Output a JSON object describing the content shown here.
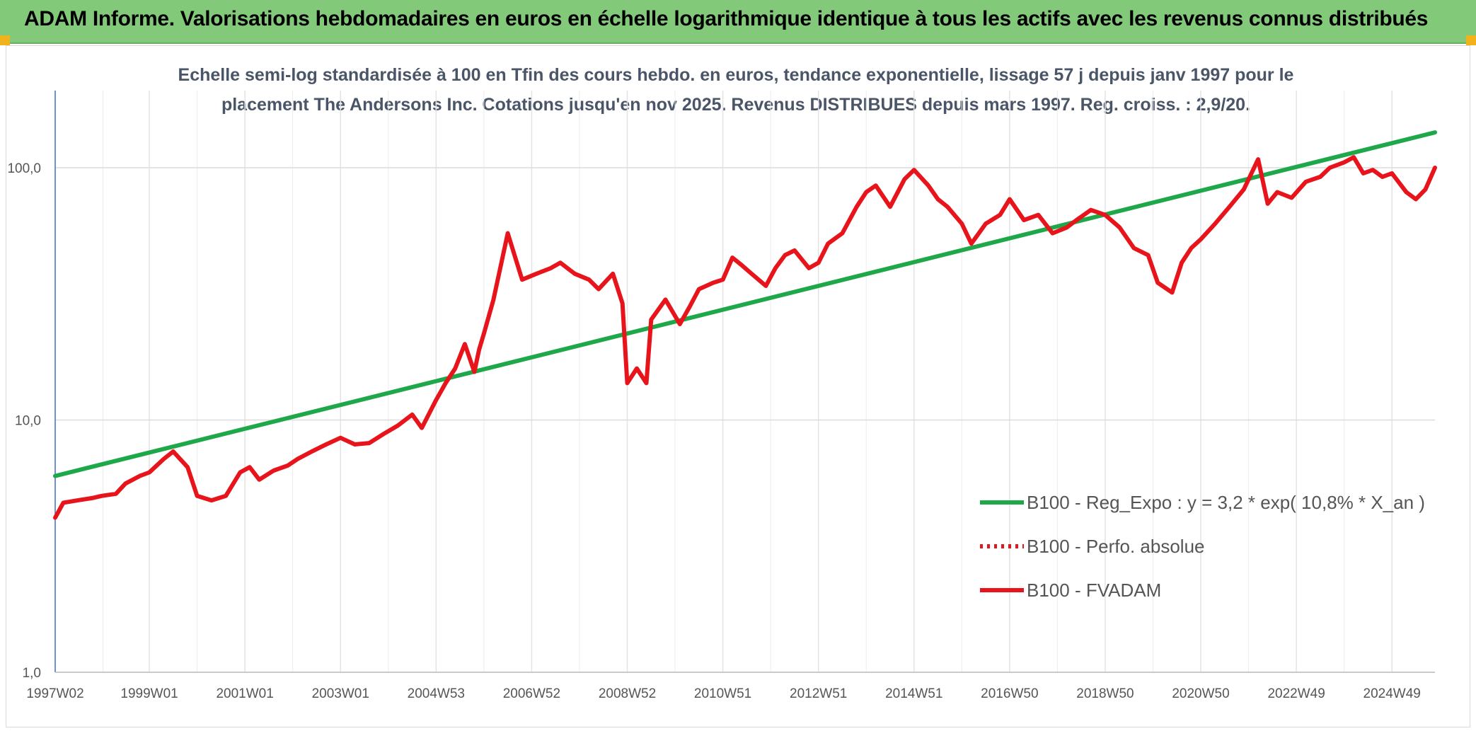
{
  "header": {
    "title": "ADAM Informe. Valorisations hebdomadaires en euros en échelle logarithmique identique à tous les actifs avec les revenus connus distribués"
  },
  "chart_data": {
    "type": "line",
    "title_lines": [
      "Echelle semi-log standardisée à 100 en Tfin des cours hebdo. en euros, tendance exponentielle, lissage 57 j depuis janv 1997 pour le",
      "placement The Andersons Inc. Cotations jusqu'en nov 2025. Revenus DISTRIBUES depuis mars 1997. Reg. croiss. : 2,9/20."
    ],
    "y_scale": "log",
    "ylim": [
      1,
      180
    ],
    "y_ticks": [
      {
        "value": 1,
        "label": "1,0"
      },
      {
        "value": 10,
        "label": "10,0"
      },
      {
        "value": 100,
        "label": "100,0"
      }
    ],
    "xlim": [
      1997.03,
      2025.9
    ],
    "x_ticks": [
      {
        "value": 1997.03,
        "label": "1997W02"
      },
      {
        "value": 1999.0,
        "label": "1999W01"
      },
      {
        "value": 2001.0,
        "label": "2001W01"
      },
      {
        "value": 2003.0,
        "label": "2003W01"
      },
      {
        "value": 2005.0,
        "label": "2004W53"
      },
      {
        "value": 2007.0,
        "label": "2006W52"
      },
      {
        "value": 2009.0,
        "label": "2008W52"
      },
      {
        "value": 2011.0,
        "label": "2010W51"
      },
      {
        "value": 2013.0,
        "label": "2012W51"
      },
      {
        "value": 2015.0,
        "label": "2014W51"
      },
      {
        "value": 2017.0,
        "label": "2016W50"
      },
      {
        "value": 2019.0,
        "label": "2018W50"
      },
      {
        "value": 2021.0,
        "label": "2020W50"
      },
      {
        "value": 2023.0,
        "label": "2022W49"
      },
      {
        "value": 2025.0,
        "label": "2024W49"
      }
    ],
    "grid": "vertical and horizontal",
    "legend_position": "bottom-right",
    "series": [
      {
        "name": "B100 - Reg_Expo : y = 3,2 * exp( 10,8% *  X_an )",
        "color": "#1ea84a",
        "style": "solid",
        "x": [
          1997.03,
          2025.9
        ],
        "y": [
          6.0,
          138
        ]
      },
      {
        "name": "B100 - Perfo. absolue",
        "color": "#e8141b",
        "style": "dotted",
        "x": [],
        "y": []
      },
      {
        "name": "B100 - FVADAM",
        "color": "#e8141b",
        "style": "solid",
        "x": [
          1997.03,
          1997.2,
          1997.5,
          1997.8,
          1998.0,
          1998.3,
          1998.5,
          1998.8,
          1999.0,
          1999.3,
          1999.5,
          1999.8,
          2000.0,
          2000.3,
          2000.6,
          2000.9,
          2001.1,
          2001.3,
          2001.6,
          2001.9,
          2002.1,
          2002.4,
          2002.7,
          2003.0,
          2003.3,
          2003.6,
          2003.9,
          2004.2,
          2004.5,
          2004.7,
          2005.0,
          2005.2,
          2005.4,
          2005.6,
          2005.8,
          2005.9,
          2006.0,
          2006.2,
          2006.5,
          2006.8,
          2007.1,
          2007.4,
          2007.6,
          2007.9,
          2008.2,
          2008.4,
          2008.7,
          2008.9,
          2009.0,
          2009.2,
          2009.4,
          2009.5,
          2009.8,
          2010.1,
          2010.3,
          2010.5,
          2010.8,
          2011.0,
          2011.2,
          2011.4,
          2011.6,
          2011.9,
          2012.1,
          2012.3,
          2012.5,
          2012.8,
          2013.0,
          2013.2,
          2013.5,
          2013.8,
          2014.0,
          2014.2,
          2014.5,
          2014.8,
          2015.0,
          2015.3,
          2015.5,
          2015.7,
          2016.0,
          2016.2,
          2016.5,
          2016.8,
          2017.0,
          2017.3,
          2017.6,
          2017.9,
          2018.2,
          2018.4,
          2018.7,
          2019.0,
          2019.3,
          2019.6,
          2019.9,
          2020.1,
          2020.4,
          2020.6,
          2020.8,
          2021.0,
          2021.3,
          2021.6,
          2021.9,
          2022.2,
          2022.4,
          2022.6,
          2022.9,
          2023.2,
          2023.5,
          2023.7,
          2024.0,
          2024.2,
          2024.4,
          2024.6,
          2024.8,
          2025.0,
          2025.3,
          2025.5,
          2025.7,
          2025.9
        ],
        "y": [
          4.1,
          4.7,
          4.8,
          4.9,
          5.0,
          5.1,
          5.6,
          6.0,
          6.2,
          7.0,
          7.5,
          6.5,
          5.0,
          4.8,
          5.0,
          6.2,
          6.5,
          5.8,
          6.3,
          6.6,
          7.0,
          7.5,
          8.0,
          8.5,
          8.0,
          8.1,
          8.8,
          9.5,
          10.5,
          9.3,
          12.0,
          14.0,
          16.0,
          20.0,
          15.5,
          19.0,
          22.0,
          30.0,
          55.0,
          36.0,
          38.0,
          40.0,
          42.0,
          38.0,
          36.0,
          33.0,
          38.0,
          29.0,
          14.0,
          16.0,
          14.0,
          25.0,
          30.0,
          24.0,
          28.0,
          33.0,
          35.0,
          36.0,
          44.0,
          41.0,
          38.0,
          34.0,
          40.0,
          45.0,
          47.0,
          40.0,
          42.0,
          50.0,
          55.0,
          70.0,
          80.0,
          85.0,
          70.0,
          90.0,
          98.0,
          85.0,
          75.0,
          70.0,
          60.0,
          50.0,
          60.0,
          65.0,
          75.0,
          62.0,
          65.0,
          55.0,
          58.0,
          62.0,
          68.0,
          65.0,
          58.0,
          48.0,
          45.0,
          35.0,
          32.0,
          42.0,
          48.0,
          52.0,
          60.0,
          70.0,
          82.0,
          108.0,
          72.0,
          80.0,
          76.0,
          88.0,
          92.0,
          100.0,
          105.0,
          110.0,
          95.0,
          98.0,
          92.0,
          95.0,
          80.0,
          75.0,
          82.0,
          100.0
        ]
      }
    ]
  }
}
